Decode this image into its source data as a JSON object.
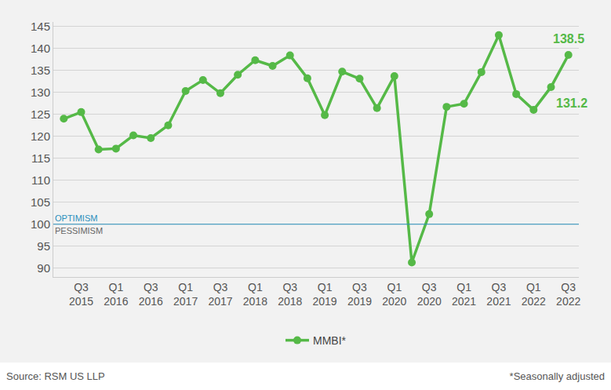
{
  "chart_data": {
    "type": "line",
    "categories": [
      null,
      "Q3 2015",
      null,
      "Q1 2016",
      null,
      "Q3 2016",
      null,
      "Q1 2017",
      null,
      "Q3 2017",
      null,
      "Q1 2018",
      null,
      "Q3 2018",
      null,
      "Q1 2019",
      null,
      "Q3 2019",
      null,
      "Q1 2020",
      null,
      "Q3 2020",
      null,
      "Q1 2021",
      null,
      "Q3 2021",
      null,
      "Q1 2022",
      null,
      "Q3 2022"
    ],
    "series": [
      {
        "name": "MMBI*",
        "color": "#55b947",
        "marker": "circle",
        "values": [
          124,
          125.5,
          117,
          117.2,
          120.2,
          119.6,
          122.5,
          130.3,
          132.8,
          129.8,
          134,
          137.3,
          136,
          138.4,
          133.2,
          124.8,
          134.7,
          133.1,
          126.4,
          133.7,
          91.3,
          102.3,
          126.7,
          127.4,
          134.6,
          143,
          129.6,
          126,
          131.2,
          138.5
        ],
        "value_labels": [
          null,
          null,
          null,
          null,
          null,
          null,
          null,
          null,
          null,
          null,
          null,
          null,
          null,
          null,
          null,
          null,
          null,
          null,
          null,
          null,
          null,
          null,
          null,
          null,
          null,
          null,
          null,
          null,
          "131.2",
          "138.5"
        ]
      }
    ],
    "ylim": [
      88,
      146
    ],
    "yticks": [
      90,
      95,
      100,
      105,
      110,
      115,
      120,
      125,
      130,
      135,
      140,
      145
    ],
    "grid": true,
    "legend": "bottom",
    "reference_line": {
      "value": 100,
      "label_above": "OPTIMISM",
      "label_below": "PESSIMISM"
    },
    "source": "Source: RSM US LLP",
    "footnote": "*Seasonally adjusted"
  }
}
